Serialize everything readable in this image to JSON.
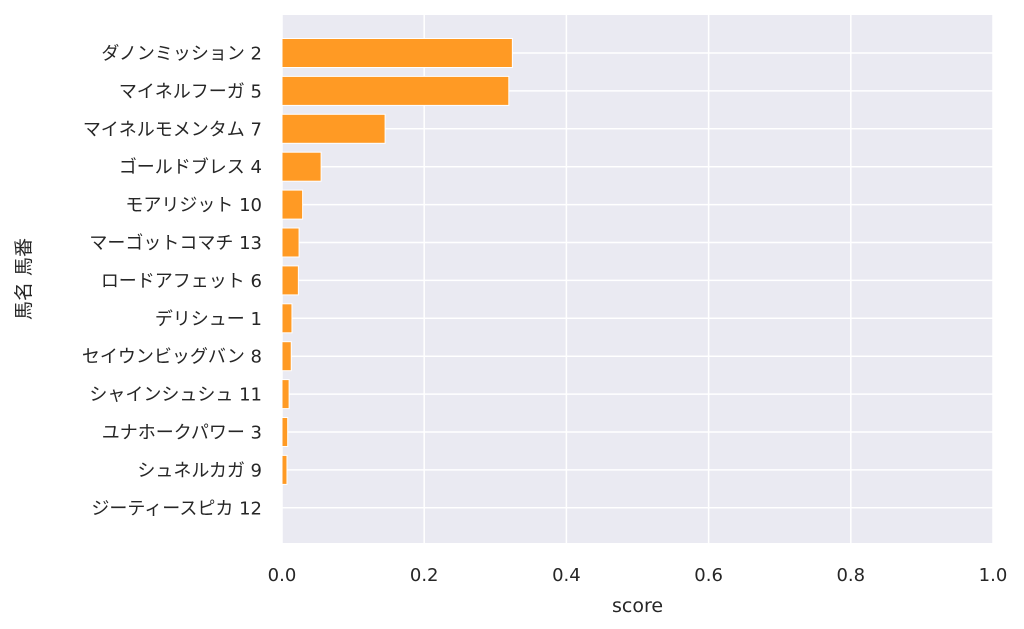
{
  "chart_data": {
    "type": "bar",
    "orientation": "horizontal",
    "categories": [
      "ダノンミッション 2",
      "マイネルフーガ 5",
      "マイネルモメンタム 7",
      "ゴールドブレス 4",
      "モアリジット 10",
      "マーゴットコマチ 13",
      "ロードアフェット 6",
      "デリシュー 1",
      "セイウンビッグバン 8",
      "シャインシュシュ 11",
      "ユナホークパワー 3",
      "シュネルカガ 9",
      "ジーティースピカ 12"
    ],
    "values": [
      0.324,
      0.319,
      0.145,
      0.055,
      0.029,
      0.024,
      0.023,
      0.014,
      0.013,
      0.01,
      0.008,
      0.007,
      0.0
    ],
    "xlabel": "score",
    "ylabel": "馬名 馬番",
    "xlim": [
      0,
      1.0
    ],
    "x_ticks": [
      "0.0",
      "0.2",
      "0.4",
      "0.6",
      "0.8",
      "1.0"
    ],
    "grid": true,
    "colors": {
      "bar": "#ff9a24",
      "plot_background": "#eaeaf2",
      "grid": "#ffffff",
      "text": "#262626"
    }
  }
}
